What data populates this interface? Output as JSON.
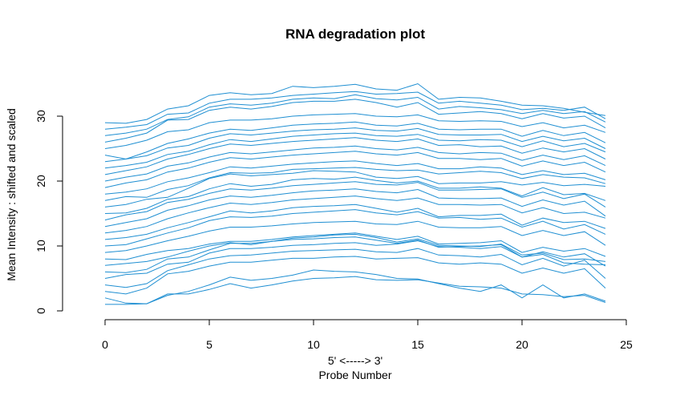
{
  "chart_data": {
    "type": "line",
    "title": "RNA degradation plot",
    "xlabel_line1": "5' <-----> 3'",
    "xlabel_line2": "Probe Number",
    "ylabel": "Mean Intensity : shifted and scaled",
    "xlim": [
      0,
      25
    ],
    "ylim": [
      0,
      30
    ],
    "x_ticks": [
      0,
      5,
      10,
      15,
      20,
      25
    ],
    "y_ticks": [
      0,
      10,
      20,
      30
    ],
    "grid": false,
    "line_color": "#1f8fd2",
    "x": [
      0,
      1,
      2,
      3,
      4,
      5,
      6,
      7,
      8,
      9,
      10,
      11,
      12,
      13,
      14,
      15,
      16,
      17,
      18,
      19,
      20,
      21,
      22,
      23,
      24
    ],
    "series": [
      {
        "values": [
          1.0,
          1.0,
          1.1,
          2.6,
          2.6,
          3.3,
          4.2,
          3.5,
          4.0,
          4.6,
          5.0,
          5.1,
          5.3,
          4.8,
          4.7,
          4.8,
          4.3,
          3.8,
          3.7,
          3.5,
          2.6,
          2.5,
          2.2,
          2.4,
          1.3
        ]
      },
      {
        "values": [
          2.0,
          1.2,
          1.1,
          2.4,
          3.0,
          4.0,
          5.2,
          4.7,
          5.0,
          5.5,
          6.3,
          6.1,
          6.0,
          5.6,
          5.0,
          4.9,
          4.2,
          3.5,
          3.0,
          4.0,
          2.0,
          4.0,
          2.0,
          2.6,
          1.5
        ]
      },
      {
        "values": [
          3.0,
          2.6,
          3.5,
          5.7,
          6.1,
          6.9,
          7.5,
          7.5,
          7.8,
          8.1,
          8.1,
          8.3,
          8.4,
          8.0,
          8.1,
          8.2,
          7.4,
          7.2,
          7.4,
          7.2,
          5.8,
          6.6,
          5.8,
          6.5,
          3.5
        ]
      },
      {
        "values": [
          4.0,
          3.6,
          4.2,
          6.2,
          7.1,
          8.0,
          8.5,
          8.6,
          8.9,
          9.2,
          9.3,
          9.4,
          9.5,
          9.1,
          9.0,
          9.6,
          8.6,
          8.5,
          8.3,
          8.7,
          7.1,
          8.1,
          6.9,
          7.8,
          5.0
        ]
      },
      {
        "values": [
          5.0,
          5.6,
          5.8,
          7.2,
          7.5,
          8.9,
          9.6,
          9.6,
          9.8,
          10.1,
          10.2,
          10.4,
          10.5,
          10.1,
          10.3,
          10.8,
          9.9,
          9.8,
          9.6,
          9.9,
          8.3,
          8.7,
          7.4,
          7.2,
          7.1
        ]
      },
      {
        "values": [
          6.0,
          5.9,
          6.4,
          8.0,
          8.3,
          9.4,
          10.4,
          10.4,
          10.7,
          11.0,
          11.1,
          11.3,
          11.4,
          10.9,
          10.4,
          10.9,
          9.8,
          9.9,
          10.0,
          10.2,
          8.3,
          9.1,
          8.3,
          8.8,
          6.9
        ]
      },
      {
        "values": [
          7.0,
          7.3,
          7.6,
          8.3,
          9.2,
          10.0,
          10.5,
          10.2,
          10.7,
          11.2,
          11.4,
          11.7,
          11.8,
          11.3,
          10.6,
          11.1,
          10.1,
          10.0,
          9.9,
          10.3,
          8.6,
          8.9,
          7.9,
          8.0,
          7.6
        ]
      },
      {
        "values": [
          8.0,
          7.9,
          8.7,
          9.3,
          9.6,
          10.3,
          10.7,
          10.7,
          11.0,
          11.4,
          11.6,
          11.8,
          12.0,
          11.5,
          11.0,
          11.5,
          10.3,
          10.4,
          10.5,
          10.8,
          9.0,
          9.8,
          9.2,
          9.6,
          8.4
        ]
      },
      {
        "values": [
          9.0,
          9.3,
          10.0,
          10.8,
          11.5,
          12.3,
          12.9,
          12.9,
          13.1,
          13.4,
          13.6,
          13.7,
          13.8,
          13.4,
          13.3,
          13.8,
          12.9,
          12.8,
          12.8,
          13.0,
          11.6,
          12.4,
          11.6,
          12.2,
          10.1
        ]
      },
      {
        "values": [
          10.0,
          10.2,
          11.1,
          12.0,
          12.8,
          13.9,
          14.5,
          14.4,
          14.6,
          15.0,
          15.2,
          15.4,
          15.6,
          15.1,
          14.8,
          15.3,
          14.3,
          14.4,
          14.1,
          14.3,
          12.9,
          13.8,
          12.6,
          13.3,
          11.8
        ]
      },
      {
        "values": [
          11.0,
          11.3,
          11.8,
          12.8,
          13.6,
          14.5,
          15.4,
          15.1,
          15.4,
          15.9,
          16.1,
          16.2,
          16.4,
          15.8,
          15.2,
          15.8,
          14.5,
          14.7,
          14.7,
          14.9,
          13.2,
          14.3,
          13.6,
          13.8,
          12.7
        ]
      },
      {
        "values": [
          12.0,
          12.4,
          13.0,
          14.2,
          15.1,
          15.9,
          16.6,
          16.4,
          16.7,
          17.1,
          17.3,
          17.5,
          17.7,
          17.3,
          17.0,
          17.4,
          16.4,
          16.4,
          16.3,
          16.4,
          15.1,
          15.9,
          15.0,
          15.2,
          14.3
        ]
      },
      {
        "values": [
          13.0,
          13.6,
          14.2,
          15.5,
          16.2,
          17.1,
          17.7,
          17.5,
          17.8,
          18.2,
          18.5,
          18.6,
          18.8,
          18.4,
          18.2,
          18.7,
          17.4,
          17.3,
          17.3,
          17.4,
          16.1,
          17.1,
          16.3,
          16.9,
          14.6
        ]
      },
      {
        "values": [
          14.0,
          14.8,
          15.3,
          16.7,
          17.2,
          18.1,
          18.8,
          18.6,
          18.9,
          19.3,
          19.5,
          19.7,
          19.9,
          19.5,
          19.4,
          19.8,
          18.6,
          18.6,
          18.7,
          18.8,
          17.5,
          18.3,
          17.3,
          18.0,
          16.0
        ]
      },
      {
        "values": [
          15.0,
          15.1,
          15.8,
          17.2,
          17.6,
          18.8,
          19.6,
          19.2,
          19.5,
          20.2,
          20.4,
          20.3,
          20.6,
          20.1,
          19.7,
          20.0,
          18.9,
          18.9,
          19.1,
          18.9,
          17.7,
          19.0,
          17.9,
          18.1,
          17.0
        ]
      },
      {
        "values": [
          16.0,
          16.4,
          17.2,
          17.5,
          18.9,
          20.4,
          21.1,
          20.8,
          21.0,
          21.2,
          21.6,
          21.5,
          21.4,
          20.6,
          20.4,
          20.7,
          19.6,
          19.7,
          19.7,
          19.9,
          19.4,
          19.8,
          19.3,
          19.5,
          19.2
        ]
      },
      {
        "values": [
          17.0,
          17.6,
          17.5,
          18.7,
          19.3,
          20.5,
          21.3,
          21.2,
          21.3,
          21.8,
          21.9,
          22.0,
          22.1,
          21.8,
          21.6,
          21.7,
          21.1,
          21.3,
          21.5,
          21.3,
          20.4,
          21.0,
          20.6,
          20.5,
          19.6
        ]
      },
      {
        "values": [
          18.0,
          18.3,
          18.8,
          19.9,
          20.5,
          21.3,
          22.2,
          22.0,
          22.3,
          22.6,
          22.8,
          23.0,
          23.1,
          22.7,
          22.4,
          22.7,
          21.9,
          21.9,
          22.2,
          22.0,
          21.0,
          21.6,
          21.0,
          21.2,
          20.2
        ]
      },
      {
        "values": [
          19.0,
          19.7,
          20.2,
          21.4,
          22.0,
          22.9,
          23.6,
          23.4,
          23.7,
          24.0,
          24.2,
          24.4,
          24.6,
          24.2,
          24.0,
          24.4,
          23.5,
          23.5,
          23.3,
          23.5,
          22.3,
          23.1,
          22.4,
          22.9,
          21.4
        ]
      },
      {
        "values": [
          20.0,
          20.6,
          21.1,
          22.3,
          22.8,
          23.7,
          24.4,
          24.2,
          24.5,
          24.8,
          25.1,
          25.2,
          25.4,
          25.0,
          24.8,
          25.2,
          24.4,
          24.2,
          24.4,
          24.3,
          23.2,
          24.0,
          23.3,
          23.9,
          22.4
        ]
      },
      {
        "values": [
          21.0,
          21.6,
          22.2,
          23.4,
          24.1,
          25.0,
          25.7,
          25.5,
          25.8,
          26.1,
          26.3,
          26.5,
          26.7,
          26.3,
          26.1,
          26.5,
          25.5,
          25.6,
          25.3,
          25.4,
          24.3,
          25.1,
          24.5,
          25.0,
          23.4
        ]
      },
      {
        "values": [
          22.0,
          22.4,
          22.9,
          24.1,
          24.6,
          25.6,
          26.4,
          26.1,
          26.5,
          26.9,
          27.1,
          27.3,
          27.4,
          27.0,
          26.9,
          27.2,
          26.3,
          26.2,
          26.4,
          26.3,
          25.3,
          26.2,
          25.3,
          25.8,
          24.5
        ]
      },
      {
        "values": [
          23.0,
          23.4,
          23.9,
          25.1,
          25.5,
          26.6,
          27.3,
          27.1,
          27.4,
          27.7,
          27.9,
          28.0,
          28.2,
          27.8,
          27.7,
          28.1,
          27.2,
          27.1,
          27.1,
          27.2,
          26.1,
          26.9,
          26.2,
          26.6,
          25.0
        ]
      },
      {
        "values": [
          24.0,
          23.4,
          24.5,
          25.8,
          26.5,
          27.4,
          28.0,
          27.8,
          28.2,
          28.6,
          28.8,
          28.9,
          29.1,
          28.6,
          28.5,
          28.9,
          28.0,
          27.9,
          28.0,
          28.0,
          26.9,
          27.8,
          27.0,
          27.5,
          25.9
        ]
      },
      {
        "values": [
          25.0,
          25.5,
          26.3,
          27.6,
          27.9,
          29.0,
          29.4,
          29.4,
          29.6,
          30.0,
          30.2,
          30.3,
          30.4,
          30.0,
          29.9,
          30.2,
          29.3,
          29.2,
          29.3,
          29.2,
          28.4,
          29.0,
          28.2,
          28.6,
          27.5
        ]
      },
      {
        "values": [
          26.0,
          26.6,
          27.4,
          29.4,
          29.5,
          30.9,
          31.4,
          31.1,
          31.5,
          32.1,
          32.3,
          32.3,
          32.6,
          32.1,
          31.4,
          32.1,
          30.3,
          30.5,
          30.7,
          30.4,
          29.6,
          30.4,
          29.7,
          30.0,
          28.2
        ]
      },
      {
        "values": [
          27.0,
          27.4,
          28.0,
          29.5,
          29.9,
          31.4,
          31.9,
          31.7,
          32.0,
          32.6,
          32.8,
          32.7,
          33.3,
          32.7,
          32.5,
          32.9,
          31.1,
          31.5,
          31.3,
          31.0,
          30.4,
          30.9,
          30.4,
          30.7,
          29.1
        ]
      },
      {
        "values": [
          28.0,
          28.3,
          28.7,
          30.3,
          30.5,
          32.0,
          32.6,
          32.6,
          32.8,
          33.2,
          33.4,
          33.6,
          33.8,
          33.4,
          33.5,
          33.7,
          32.0,
          32.3,
          32.0,
          31.7,
          31.0,
          31.2,
          30.9,
          31.4,
          29.6
        ]
      },
      {
        "values": [
          29.0,
          28.9,
          29.5,
          31.1,
          31.6,
          33.2,
          33.6,
          33.3,
          33.5,
          34.6,
          34.4,
          34.6,
          34.9,
          34.2,
          34.0,
          35.0,
          32.6,
          32.9,
          32.8,
          32.3,
          31.7,
          31.6,
          31.2,
          30.6,
          30.1
        ]
      }
    ]
  }
}
